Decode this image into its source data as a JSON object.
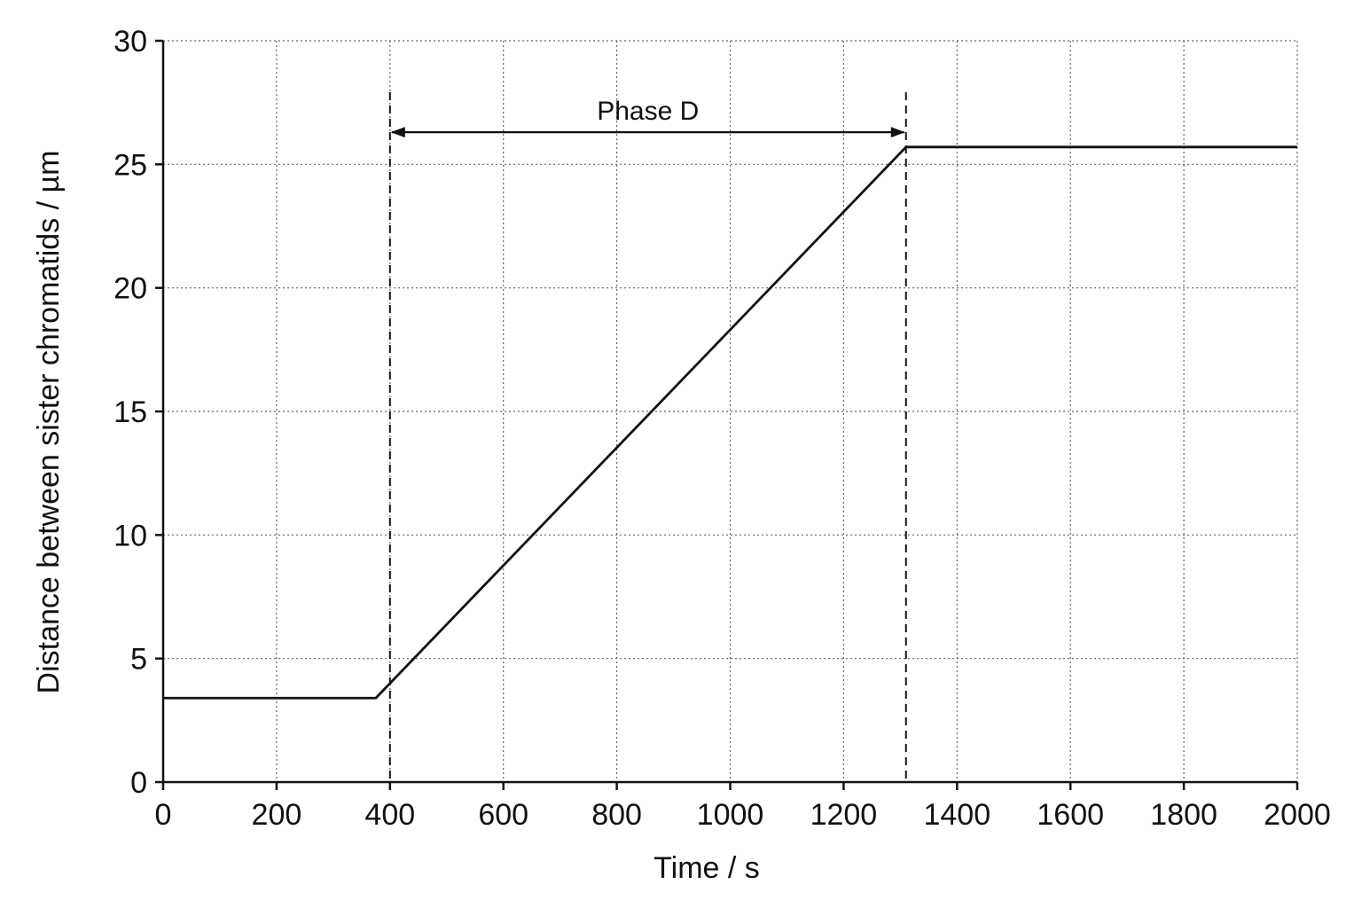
{
  "chart_data": {
    "type": "line",
    "title": "",
    "xlabel": "Time / s",
    "ylabel": "Distance between sister chromatids / µm",
    "xlim": [
      0,
      2000
    ],
    "ylim": [
      0,
      30
    ],
    "x_ticks": [
      0,
      200,
      400,
      600,
      800,
      1000,
      1200,
      1400,
      1600,
      1800,
      2000
    ],
    "y_ticks": [
      0,
      5,
      10,
      15,
      20,
      25,
      30
    ],
    "x_tick_labels": [
      "0",
      "200",
      "400",
      "600",
      "800",
      "1000",
      "1200",
      "1400",
      "1600",
      "1800",
      "2000"
    ],
    "y_tick_labels": [
      "0",
      "5",
      "10",
      "15",
      "20",
      "25",
      "30"
    ],
    "grid": true,
    "grid_style": "dotted",
    "series": [
      {
        "x": [
          0,
          375,
          1310,
          2000
        ],
        "y": [
          3.4,
          3.4,
          25.7,
          25.7
        ]
      }
    ],
    "vertical_markers": [
      {
        "x": 400,
        "style": "dashed"
      },
      {
        "x": 1310,
        "style": "dashed"
      }
    ],
    "annotations": [
      {
        "text": "Phase D",
        "type": "double-arrow",
        "x_start": 400,
        "x_end": 1310,
        "y": 26.3
      }
    ],
    "colors": {
      "line": "#111111",
      "grid": "#666666",
      "axes": "#111111"
    }
  }
}
